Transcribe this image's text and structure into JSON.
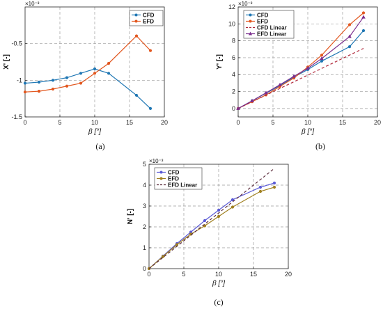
{
  "chart_data": [
    {
      "type": "line",
      "panel": "(a)",
      "ylabel": "X' [-]",
      "xlabel": "β [°]",
      "y_exponent": "×10⁻³",
      "xlim": [
        0,
        20
      ],
      "ylim": [
        -1.5,
        0
      ],
      "xticks": [
        0,
        5,
        10,
        15,
        20
      ],
      "yticks": [
        -1.5,
        -1,
        -0.5
      ],
      "grid": true,
      "legend_position": "top-right",
      "series": [
        {
          "name": "CFD",
          "color": "#1f77b4",
          "marker": "circle",
          "dash": "",
          "x": [
            0,
            2,
            4,
            6,
            8,
            10,
            12,
            16,
            18
          ],
          "y": [
            -1.04,
            -1.025,
            -1.0,
            -0.965,
            -0.905,
            -0.845,
            -0.905,
            -1.205,
            -1.385
          ]
        },
        {
          "name": "EFD",
          "color": "#e2571f",
          "marker": "circle",
          "dash": "",
          "x": [
            0,
            2,
            4,
            6,
            8,
            10,
            12,
            16,
            18
          ],
          "y": [
            -1.16,
            -1.15,
            -1.12,
            -1.08,
            -1.04,
            -0.905,
            -0.77,
            -0.395,
            -0.595
          ]
        }
      ]
    },
    {
      "type": "line",
      "panel": "(b)",
      "ylabel": "Y' [-]",
      "xlabel": "β [°]",
      "y_exponent": "×10⁻³",
      "xlim": [
        0,
        20
      ],
      "ylim": [
        -1,
        12
      ],
      "xticks": [
        0,
        5,
        10,
        15,
        20
      ],
      "yticks": [
        0,
        2,
        4,
        6,
        8,
        10,
        12
      ],
      "grid": true,
      "legend_position": "top-left",
      "series": [
        {
          "name": "CFD",
          "color": "#1f77b4",
          "marker": "circle",
          "dash": "",
          "x": [
            0,
            2,
            4,
            6,
            8,
            10,
            12,
            16,
            18
          ],
          "y": [
            0,
            0.9,
            1.8,
            2.7,
            3.7,
            4.6,
            5.6,
            7.3,
            9.2
          ]
        },
        {
          "name": "EFD",
          "color": "#e2571f",
          "marker": "circle",
          "dash": "",
          "x": [
            0,
            2,
            4,
            6,
            8,
            10,
            12,
            16,
            18
          ],
          "y": [
            0,
            0.8,
            1.6,
            2.6,
            3.6,
            4.9,
            6.3,
            9.9,
            11.3
          ]
        },
        {
          "name": "CFD Linear",
          "color": "#b0283a",
          "marker": "none",
          "dash": "4,3",
          "x": [
            0,
            18
          ],
          "y": [
            0,
            7.1
          ]
        },
        {
          "name": "EFD Linear",
          "color": "#7b2e8e",
          "marker": "triangle",
          "dash": "",
          "x": [
            0,
            2,
            4,
            6,
            8,
            10,
            12,
            16,
            18
          ],
          "y": [
            0,
            0.9,
            1.85,
            2.8,
            3.8,
            4.75,
            5.9,
            8.5,
            10.8
          ]
        }
      ]
    },
    {
      "type": "line",
      "panel": "(c)",
      "ylabel": "N' [-]",
      "xlabel": "β [°]",
      "y_exponent": "×10⁻³",
      "xlim": [
        0,
        20
      ],
      "ylim": [
        0,
        5
      ],
      "xticks": [
        0,
        5,
        10,
        15,
        20
      ],
      "yticks": [
        0,
        1,
        2,
        3,
        4,
        5
      ],
      "grid": true,
      "legend_position": "top-left",
      "series": [
        {
          "name": "CFD",
          "color": "#5b5bd6",
          "marker": "circle",
          "dash": "",
          "x": [
            0,
            2,
            4,
            6,
            8,
            10,
            12,
            16,
            18
          ],
          "y": [
            0,
            0.6,
            1.2,
            1.75,
            2.3,
            2.8,
            3.3,
            3.9,
            4.1
          ]
        },
        {
          "name": "EFD",
          "color": "#a08020",
          "marker": "circle",
          "dash": "",
          "x": [
            0,
            2,
            4,
            6,
            8,
            10,
            12,
            16,
            18
          ],
          "y": [
            0,
            0.58,
            1.15,
            1.65,
            2.05,
            2.5,
            2.95,
            3.7,
            3.9
          ]
        },
        {
          "name": "EFD Linear",
          "color": "#5a2a3a",
          "marker": "none",
          "dash": "4,3",
          "x": [
            0,
            18
          ],
          "y": [
            0,
            4.8
          ]
        }
      ]
    }
  ]
}
